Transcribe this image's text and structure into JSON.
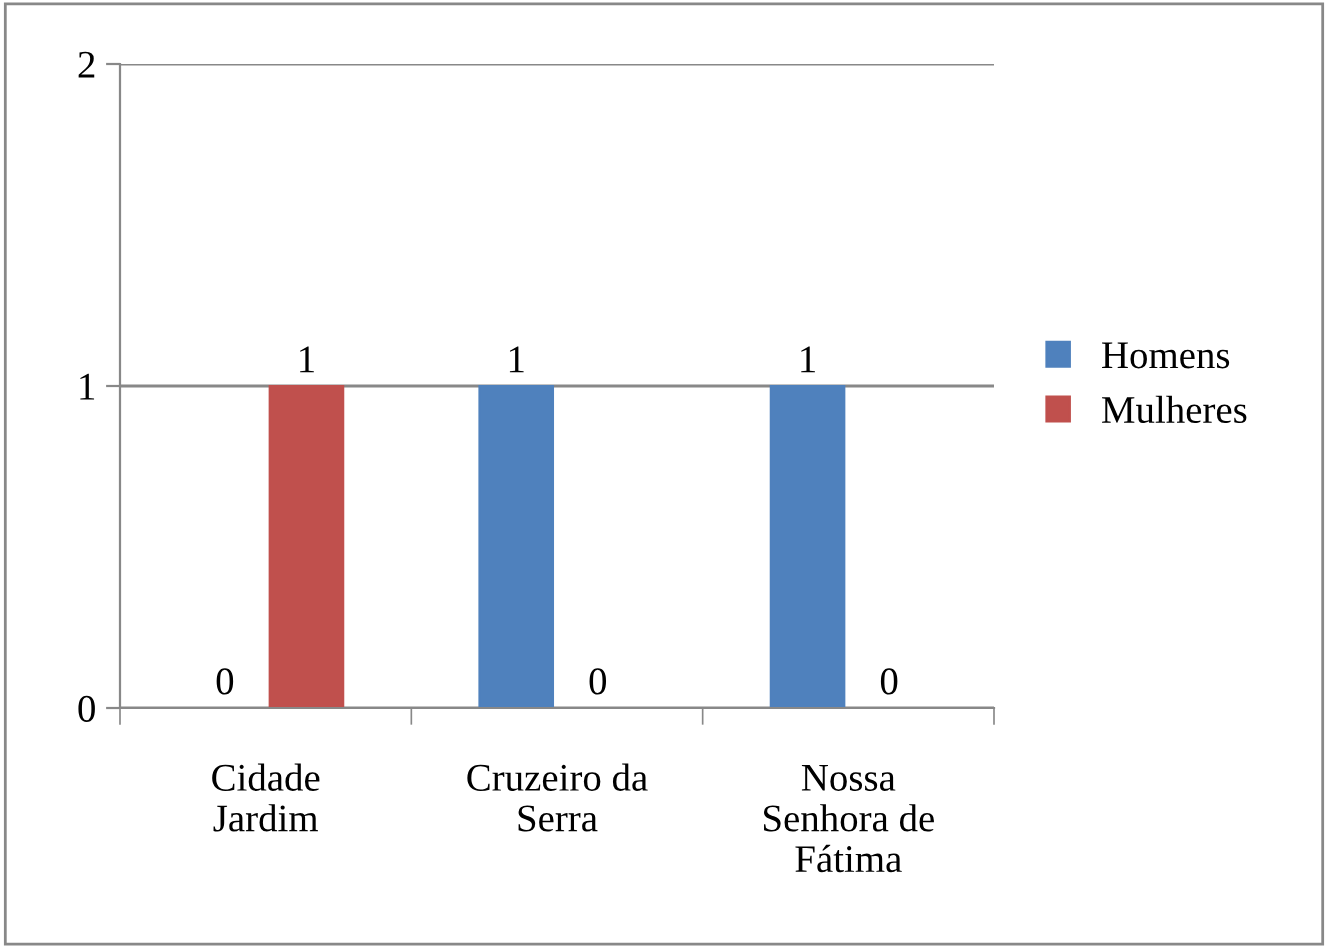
{
  "chart_data": {
    "type": "bar",
    "categories": [
      "Cidade\nJardim",
      "Cruzeiro da\nSerra",
      "Nossa\nSenhora de\nFátima"
    ],
    "series": [
      {
        "name": "Homens",
        "color": "#4f81bd",
        "values": [
          0,
          1,
          1
        ]
      },
      {
        "name": "Mulheres",
        "color": "#c0504d",
        "values": [
          1,
          0,
          0
        ]
      }
    ],
    "ylim": [
      0,
      2
    ],
    "yticks": [
      0,
      1,
      2
    ],
    "grid": "y",
    "legend": "right",
    "data_labels": true
  }
}
